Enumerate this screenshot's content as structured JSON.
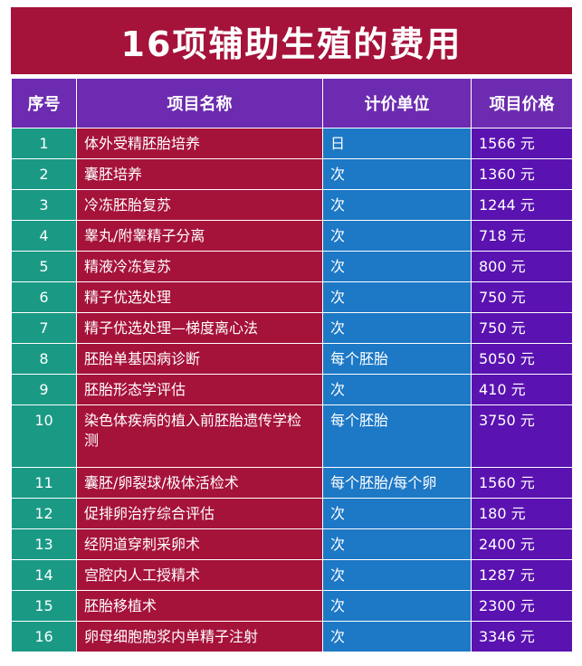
{
  "title": "16项辅助生殖的费用",
  "colors": {
    "title_bg": "#a5123a",
    "header_bg": "#6c2bb0",
    "no_col": "#1a9a85",
    "name_col": "#a5123a",
    "unit_col": "#1d78c6",
    "price_col": "#5a12b0"
  },
  "headers": {
    "no": "序号",
    "name": "项目名称",
    "unit": "计价单位",
    "price": "项目价格"
  },
  "rows": [
    {
      "no": "1",
      "name": "体外受精胚胎培养",
      "unit": "日",
      "price": "1566 元"
    },
    {
      "no": "2",
      "name": "囊胚培养",
      "unit": "次",
      "price": "1360 元"
    },
    {
      "no": "3",
      "name": "冷冻胚胎复苏",
      "unit": "次",
      "price": "1244 元"
    },
    {
      "no": "4",
      "name": "睾丸/附睾精子分离",
      "unit": "次",
      "price": "718 元"
    },
    {
      "no": "5",
      "name": "精液冷冻复苏",
      "unit": "次",
      "price": "800 元"
    },
    {
      "no": "6",
      "name": "精子优选处理",
      "unit": "次",
      "price": "750 元"
    },
    {
      "no": "7",
      "name": "精子优选处理—梯度离心法",
      "unit": "次",
      "price": "750 元"
    },
    {
      "no": "8",
      "name": "胚胎单基因病诊断",
      "unit": "每个胚胎",
      "price": "5050 元"
    },
    {
      "no": "9",
      "name": "胚胎形态学评估",
      "unit": "次",
      "price": "410 元"
    },
    {
      "no": "10",
      "name": "染色体疾病的植入前胚胎遗传学检测",
      "unit": "每个胚胎",
      "price": "3750 元"
    },
    {
      "no": "11",
      "name": "囊胚/卵裂球/极体活检术",
      "unit": "每个胚胎/每个卵",
      "price": "1560 元"
    },
    {
      "no": "12",
      "name": "促排卵治疗综合评估",
      "unit": "次",
      "price": "180 元"
    },
    {
      "no": "13",
      "name": "经阴道穿刺采卵术",
      "unit": "次",
      "price": "2400 元"
    },
    {
      "no": "14",
      "name": "宫腔内人工授精术",
      "unit": "次",
      "price": "1287 元"
    },
    {
      "no": "15",
      "name": "胚胎移植术",
      "unit": "次",
      "price": "2300 元"
    },
    {
      "no": "16",
      "name": "卵母细胞胞浆内单精子注射",
      "unit": "次",
      "price": "3346 元"
    }
  ]
}
